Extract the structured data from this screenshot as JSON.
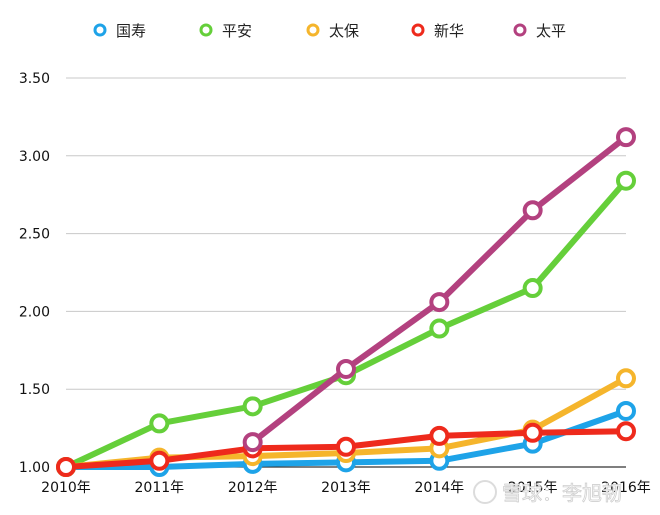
{
  "chart_data": {
    "type": "line",
    "title": "",
    "xlabel": "",
    "ylabel": "",
    "categories": [
      "2010年",
      "2011年",
      "2012年",
      "2013年",
      "2014年",
      "2015年",
      "2016年"
    ],
    "ylim": [
      1.0,
      3.5
    ],
    "yticks": [
      "1.00",
      "1.50",
      "2.00",
      "2.50",
      "3.00",
      "3.50"
    ],
    "grid": true,
    "legend_position": "top",
    "series": [
      {
        "name": "国寿",
        "color": "#1ea3e8",
        "values": [
          1.0,
          1.0,
          1.02,
          1.03,
          1.04,
          1.15,
          1.36
        ]
      },
      {
        "name": "平安",
        "color": "#65cf3a",
        "values": [
          1.0,
          1.28,
          1.39,
          1.59,
          1.89,
          2.15,
          2.84
        ]
      },
      {
        "name": "太保",
        "color": "#f5b52c",
        "values": [
          1.0,
          1.06,
          1.07,
          1.09,
          1.12,
          1.24,
          1.57
        ]
      },
      {
        "name": "新华",
        "color": "#ee2a1c",
        "values": [
          1.0,
          1.04,
          1.12,
          1.13,
          1.2,
          1.22,
          1.23
        ]
      },
      {
        "name": "太平",
        "color": "#b3417f",
        "values": [
          null,
          null,
          1.16,
          1.63,
          2.06,
          2.65,
          3.12
        ]
      }
    ],
    "watermark": "雪球：李旭韧"
  }
}
